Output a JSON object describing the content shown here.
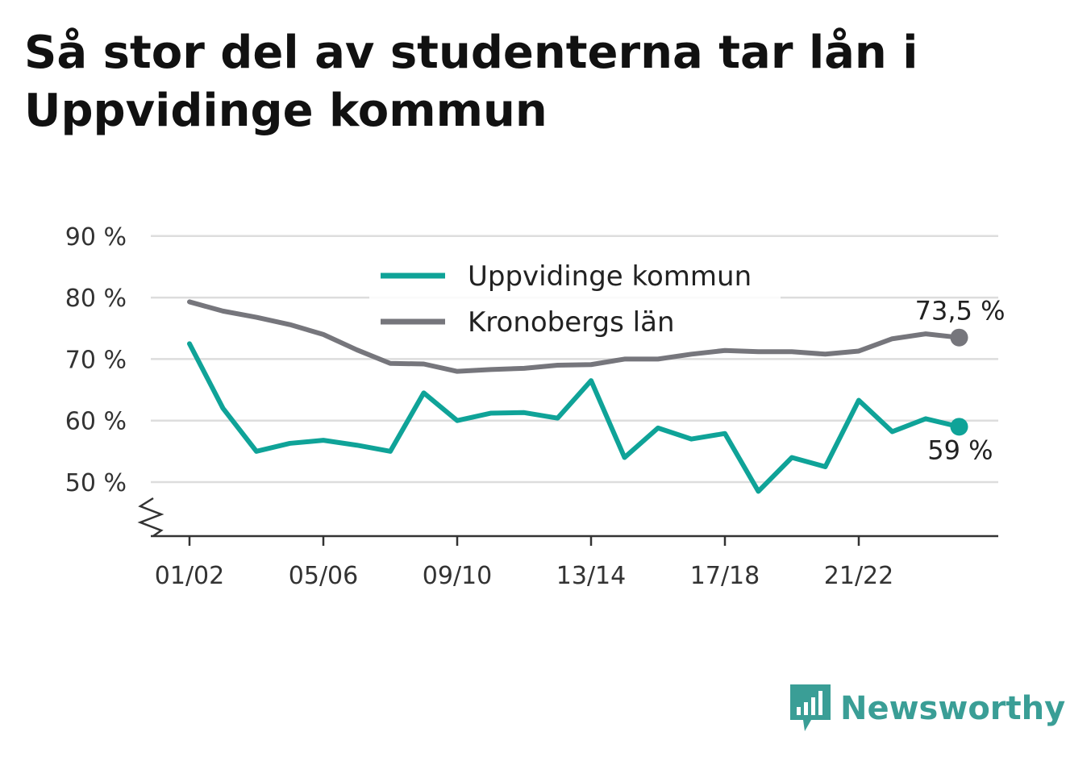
{
  "title": "Så stor del av studenterna tar lån i Uppvidinge kommun",
  "logo": {
    "text": "Newsworthy",
    "icon": "newsworthy-chart-icon",
    "color": "#3a9e96"
  },
  "chart_data": {
    "type": "line",
    "title": "Så stor del av studenterna tar lån i Uppvidinge kommun",
    "x": [
      "01/02",
      "02/03",
      "03/04",
      "04/05",
      "05/06",
      "06/07",
      "07/08",
      "08/09",
      "09/10",
      "10/11",
      "11/12",
      "12/13",
      "13/14",
      "14/15",
      "15/16",
      "16/17",
      "17/18",
      "18/19",
      "19/20",
      "20/21",
      "21/22",
      "22/23",
      "23/24",
      "24/25"
    ],
    "xticks": [
      "01/02",
      "05/06",
      "09/10",
      "13/14",
      "17/18",
      "21/22"
    ],
    "yticks": [
      50,
      60,
      70,
      80,
      90
    ],
    "ytick_labels": [
      "50 %",
      "60 %",
      "70 %",
      "80 %",
      "90 %"
    ],
    "ylim": [
      42,
      90
    ],
    "y_axis_break": true,
    "grid": true,
    "legend_position": "top-center",
    "series": [
      {
        "name": "Uppvidinge kommun",
        "color": "#0fa398",
        "values": [
          72.5,
          62,
          55,
          56.3,
          56.8,
          56,
          55,
          64.5,
          60,
          61.2,
          61.3,
          60.4,
          66.5,
          54,
          58.8,
          57,
          57.9,
          48.5,
          54,
          52.5,
          63.3,
          58.2,
          60.3,
          59
        ],
        "end_label": "59 %"
      },
      {
        "name": "Kronobergs län",
        "color": "#76767c",
        "values": [
          79.3,
          77.8,
          76.8,
          75.6,
          74,
          71.5,
          69.3,
          69.2,
          68,
          68.3,
          68.5,
          69,
          69.1,
          70,
          70,
          70.8,
          71.4,
          71.2,
          71.2,
          70.8,
          71.3,
          73.3,
          74.1,
          73.5
        ],
        "end_label": "73,5 %"
      }
    ]
  }
}
